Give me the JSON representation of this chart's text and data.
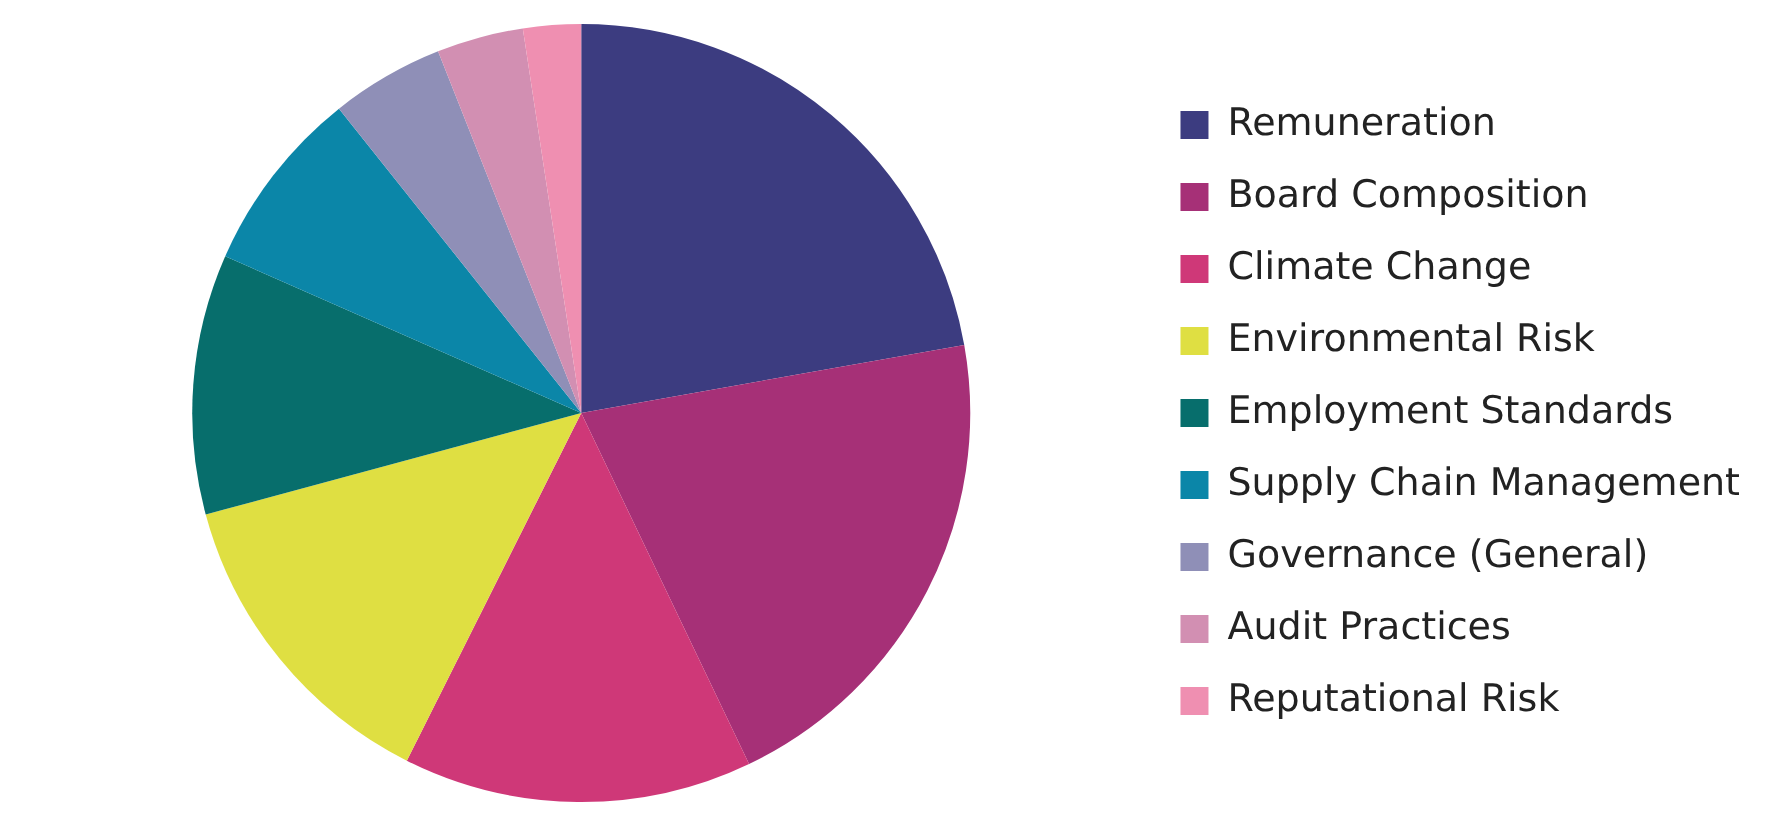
{
  "chart_data": {
    "type": "pie",
    "categories": [
      "Remuneration",
      "Board Composition",
      "Climate Change",
      "Environmental Risk",
      "Employment Standards",
      "Supply Chain Management",
      "Governance (General)",
      "Audit Practices",
      "Reputational Risk"
    ],
    "values": [
      22.2,
      20.7,
      14.5,
      13.4,
      10.8,
      7.7,
      4.7,
      3.6,
      2.4
    ],
    "colors": [
      "#3c3c80",
      "#a63077",
      "#cf3878",
      "#dfdf42",
      "#076e6c",
      "#0b86a8",
      "#8f8fb7",
      "#d28fb2",
      "#ef8fb1"
    ],
    "legend": "right"
  }
}
